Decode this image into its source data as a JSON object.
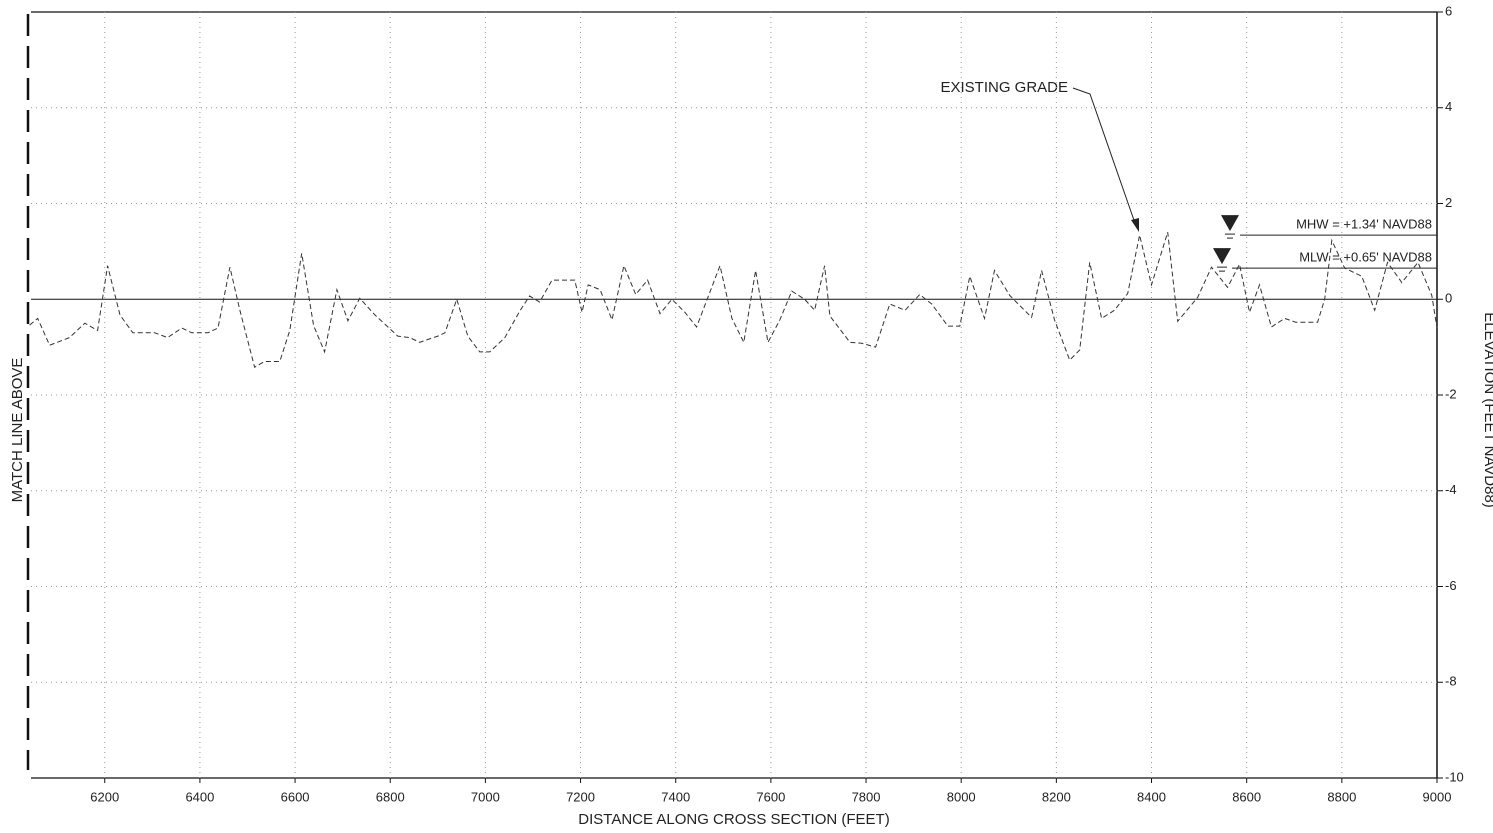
{
  "chart_data": {
    "type": "line",
    "x_label": "DISTANCE ALONG CROSS SECTION (FEET)",
    "y_label": "ELEVATION (FEET NAVD88)",
    "side_label": "MATCH LINE ABOVE",
    "annotation": "EXISTING GRADE",
    "water_levels": [
      {
        "label": "MHW = +1.34' NAVD88",
        "value": 1.34
      },
      {
        "label": "MLW = +0.65' NAVD88",
        "value": 0.65
      }
    ],
    "xlim": [
      6045,
      9000
    ],
    "xticks": [
      6200,
      6400,
      6600,
      6800,
      7000,
      7200,
      7400,
      7600,
      7800,
      8000,
      8200,
      8400,
      8600,
      8800,
      9000
    ],
    "ylim": [
      -10,
      6
    ],
    "yticks": [
      6,
      4,
      2,
      0,
      -2,
      -4,
      -6,
      -8,
      -10
    ],
    "grid": true,
    "series": [
      {
        "name": "EXISTING GRADE",
        "color": "#333333",
        "x": [
          6042,
          6059,
          6084,
          6126,
          6158,
          6185,
          6206,
          6232,
          6259,
          6305,
          6332,
          6362,
          6383,
          6417,
          6438,
          6463,
          6484,
          6515,
          6536,
          6568,
          6589,
          6614,
          6639,
          6662,
          6688,
          6711,
          6736,
          6768,
          6816,
          6841,
          6862,
          6900,
          6915,
          6940,
          6963,
          6988,
          7009,
          7041,
          7072,
          7093,
          7114,
          7140,
          7188,
          7203,
          7216,
          7241,
          7266,
          7291,
          7316,
          7341,
          7367,
          7392,
          7419,
          7444,
          7493,
          7518,
          7543,
          7568,
          7594,
          7619,
          7644,
          7671,
          7692,
          7713,
          7724,
          7766,
          7791,
          7820,
          7850,
          7882,
          7913,
          7938,
          7972,
          7997,
          8018,
          8049,
          8070,
          8102,
          8148,
          8169,
          8196,
          8228,
          8249,
          8270,
          8295,
          8322,
          8350,
          8375,
          8400,
          8434,
          8455,
          8497,
          8526,
          8560,
          8585,
          8606,
          8627,
          8652,
          8680,
          8703,
          8749,
          8764,
          8779,
          8806,
          8842,
          8869,
          8896,
          8926,
          8960,
          8989,
          9000
        ],
        "values": [
          -0.54,
          -0.4,
          -0.96,
          -0.8,
          -0.5,
          -0.65,
          0.7,
          -0.33,
          -0.7,
          -0.7,
          -0.8,
          -0.6,
          -0.7,
          -0.7,
          -0.6,
          0.67,
          -0.23,
          -1.42,
          -1.3,
          -1.3,
          -0.65,
          0.96,
          -0.55,
          -1.1,
          0.2,
          -0.45,
          0.02,
          -0.33,
          -0.77,
          -0.8,
          -0.9,
          -0.77,
          -0.7,
          0,
          -0.77,
          -1.1,
          -1.1,
          -0.8,
          -0.25,
          0.07,
          -0.06,
          0.4,
          0.4,
          -0.27,
          0.3,
          0.2,
          -0.43,
          0.7,
          0.1,
          0.4,
          -0.3,
          0,
          -0.27,
          -0.58,
          0.7,
          -0.4,
          -0.9,
          0.6,
          -0.9,
          -0.43,
          0.17,
          0,
          -0.23,
          0.7,
          -0.35,
          -0.9,
          -0.92,
          -1,
          -0.1,
          -0.23,
          0.1,
          -0.1,
          -0.56,
          -0.56,
          0.48,
          -0.4,
          0.6,
          0.08,
          -0.38,
          0.6,
          -0.43,
          -1.27,
          -1.06,
          0.77,
          -0.4,
          -0.23,
          0.12,
          1.34,
          0.3,
          1.4,
          -0.46,
          0.04,
          0.67,
          0.25,
          0.73,
          -0.27,
          0.3,
          -0.58,
          -0.4,
          -0.48,
          -0.48,
          0,
          1.23,
          0.65,
          0.48,
          -0.23,
          0.77,
          0.35,
          0.77,
          0.08,
          -0.6
        ]
      }
    ]
  }
}
